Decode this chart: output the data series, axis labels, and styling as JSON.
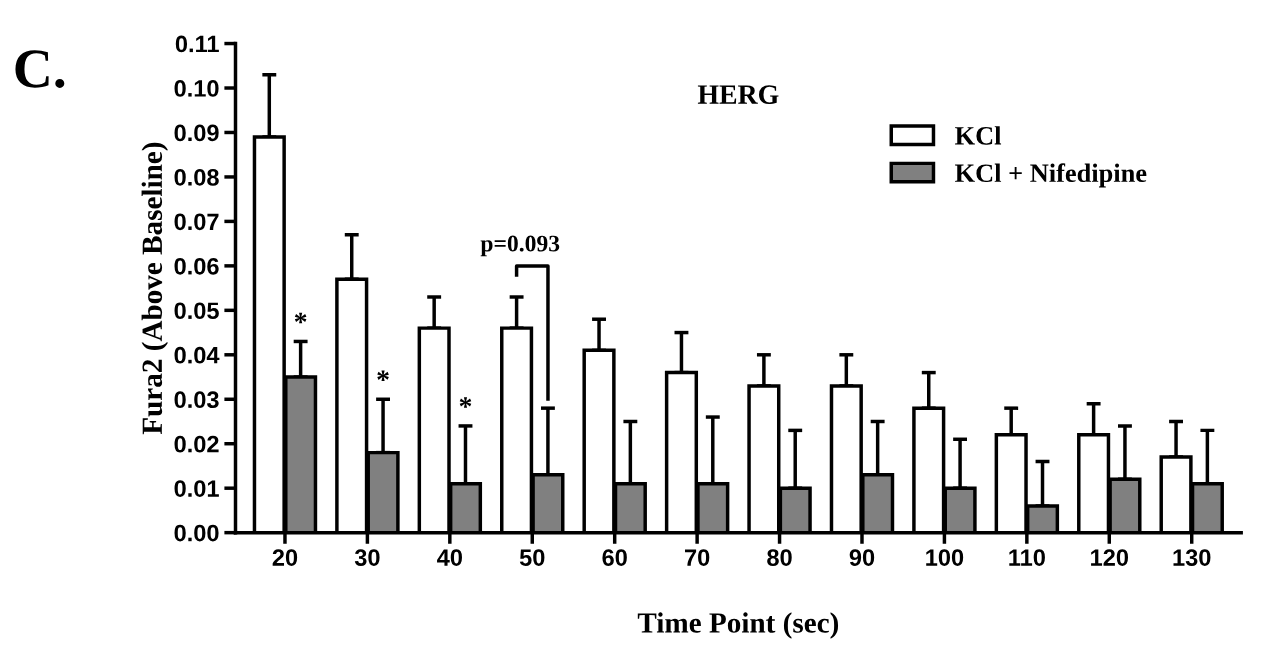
{
  "chart_data": {
    "type": "bar",
    "title": "HERG",
    "xlabel": "Time Point (sec)",
    "ylabel": "Fura2 (Above Baseline)",
    "categories": [
      "20",
      "30",
      "40",
      "50",
      "60",
      "70",
      "80",
      "90",
      "100",
      "110",
      "120",
      "130"
    ],
    "series": [
      {
        "name": "KCl",
        "color": "#ffffff",
        "values": [
          0.089,
          0.057,
          0.046,
          0.046,
          0.041,
          0.036,
          0.033,
          0.033,
          0.028,
          0.022,
          0.022,
          0.017
        ],
        "errors": [
          0.014,
          0.01,
          0.007,
          0.007,
          0.007,
          0.009,
          0.007,
          0.007,
          0.008,
          0.006,
          0.007,
          0.008
        ]
      },
      {
        "name": "KCl + Nifedipine",
        "color": "#808080",
        "values": [
          0.035,
          0.018,
          0.011,
          0.013,
          0.011,
          0.011,
          0.01,
          0.013,
          0.01,
          0.006,
          0.012,
          0.011
        ],
        "errors": [
          0.008,
          0.012,
          0.013,
          0.015,
          0.014,
          0.015,
          0.013,
          0.012,
          0.011,
          0.01,
          0.012,
          0.012
        ]
      }
    ],
    "ylim": [
      0,
      0.11
    ],
    "yticks": [
      {
        "value": 0,
        "label": "0.00"
      },
      {
        "value": 0.01,
        "label": "0.01"
      },
      {
        "value": 0.02,
        "label": "0.02"
      },
      {
        "value": 0.03,
        "label": "0.03"
      },
      {
        "value": 0.04,
        "label": "0.04"
      },
      {
        "value": 0.05,
        "label": "0.05"
      },
      {
        "value": 0.06,
        "label": "0.06"
      },
      {
        "value": 0.07,
        "label": "0.07"
      },
      {
        "value": 0.08,
        "label": "0.08"
      },
      {
        "value": 0.09,
        "label": "0.09"
      },
      {
        "value": 0.1,
        "label": "0.10"
      },
      {
        "value": 0.11,
        "label": "0.11"
      }
    ],
    "annotations": [
      "C.",
      {
        "text": "*",
        "x": "20",
        "y": 0.043
      },
      {
        "text": "*",
        "x": "30",
        "y": 0.03
      },
      {
        "text": "*",
        "x": "40",
        "y": 0.024
      },
      "p=0.093"
    ],
    "grid": false,
    "legend": "top right"
  }
}
